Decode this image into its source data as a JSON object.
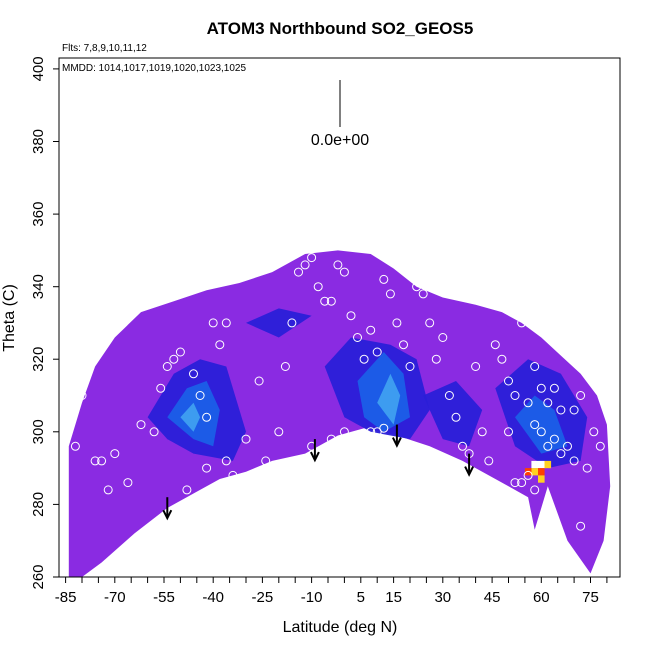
{
  "chart_data": {
    "type": "heatmap",
    "title": "ATOM3 Northbound SO2_GEOS5",
    "subtitle_flights": "Flts: 7,8,9,10,11,12",
    "subtitle_dates": "MMDD: 1014,1017,1019,1020,1023,1025",
    "xlabel": "Latitude (deg N)",
    "ylabel": "Theta (C)",
    "xlim": [
      -87,
      84
    ],
    "ylim": [
      260,
      403
    ],
    "x_ticks": [
      -85,
      -70,
      -55,
      -40,
      -25,
      -10,
      5,
      15,
      30,
      45,
      60,
      75
    ],
    "x_tick_labels": [
      "-85",
      "-70",
      "-55",
      "-40",
      "-25",
      "-10",
      "5",
      "15",
      "30",
      "45",
      "60",
      "75"
    ],
    "y_ticks": [
      260,
      280,
      300,
      320,
      340,
      360,
      380,
      400
    ],
    "y_tick_labels": [
      "260",
      "280",
      "300",
      "320",
      "340",
      "360",
      "380",
      "400"
    ],
    "scale_bar_label": "0.0e+00",
    "grid": false,
    "arrows_at": [
      [
        -54,
        282
      ],
      [
        -9,
        298
      ],
      [
        16,
        302
      ],
      [
        38,
        294
      ]
    ],
    "colors": {
      "background_field": "#8a2be2",
      "low_band": "#2a1fd8",
      "mid_band": "#1b5fe8",
      "high_band": "#3fa0f0",
      "peak_hot": "#ff4000",
      "peak_warm": "#ffd020",
      "peak_white": "#ffffff"
    },
    "envelope": [
      [
        -84,
        260
      ],
      [
        -84,
        296
      ],
      [
        -80,
        308
      ],
      [
        -76,
        318
      ],
      [
        -70,
        326
      ],
      [
        -62,
        333
      ],
      [
        -52,
        336
      ],
      [
        -42,
        339
      ],
      [
        -32,
        341
      ],
      [
        -22,
        344
      ],
      [
        -12,
        349
      ],
      [
        -2,
        350
      ],
      [
        8,
        349
      ],
      [
        15,
        345
      ],
      [
        22,
        340
      ],
      [
        30,
        337
      ],
      [
        40,
        335
      ],
      [
        48,
        333
      ],
      [
        54,
        330
      ],
      [
        60,
        326
      ],
      [
        66,
        321
      ],
      [
        72,
        316
      ],
      [
        77,
        310
      ],
      [
        80,
        302
      ],
      [
        81,
        285
      ],
      [
        79,
        270
      ],
      [
        75,
        261
      ],
      [
        68,
        270
      ],
      [
        62,
        285
      ],
      [
        58,
        273
      ],
      [
        56,
        282
      ],
      [
        50,
        285
      ],
      [
        44,
        288
      ],
      [
        36,
        292
      ],
      [
        26,
        296
      ],
      [
        16,
        299
      ],
      [
        6,
        301
      ],
      [
        -2,
        299
      ],
      [
        -12,
        294
      ],
      [
        -22,
        292
      ],
      [
        -30,
        289
      ],
      [
        -38,
        287
      ],
      [
        -46,
        283
      ],
      [
        -54,
        279
      ],
      [
        -64,
        272
      ],
      [
        -74,
        264
      ],
      [
        -80,
        260
      ]
    ],
    "enhanced_regions": [
      {
        "level": 1,
        "polygon": [
          [
            -60,
            304
          ],
          [
            -52,
            316
          ],
          [
            -44,
            320
          ],
          [
            -36,
            318
          ],
          [
            -30,
            300
          ],
          [
            -34,
            292
          ],
          [
            -46,
            294
          ],
          [
            -54,
            298
          ]
        ]
      },
      {
        "level": 2,
        "polygon": [
          [
            -54,
            304
          ],
          [
            -48,
            312
          ],
          [
            -42,
            314
          ],
          [
            -38,
            306
          ],
          [
            -40,
            296
          ],
          [
            -46,
            298
          ]
        ]
      },
      {
        "level": 3,
        "polygon": [
          [
            -50,
            304
          ],
          [
            -46,
            308
          ],
          [
            -44,
            304
          ],
          [
            -46,
            300
          ]
        ]
      },
      {
        "level": 1,
        "polygon": [
          [
            -6,
            318
          ],
          [
            2,
            326
          ],
          [
            14,
            324
          ],
          [
            22,
            320
          ],
          [
            26,
            306
          ],
          [
            20,
            298
          ],
          [
            8,
            300
          ],
          [
            0,
            304
          ]
        ]
      },
      {
        "level": 2,
        "polygon": [
          [
            4,
            314
          ],
          [
            12,
            322
          ],
          [
            18,
            316
          ],
          [
            20,
            304
          ],
          [
            12,
            300
          ],
          [
            6,
            304
          ]
        ]
      },
      {
        "level": 3,
        "polygon": [
          [
            10,
            308
          ],
          [
            14,
            316
          ],
          [
            17,
            310
          ],
          [
            15,
            302
          ]
        ]
      },
      {
        "level": 1,
        "polygon": [
          [
            -30,
            330
          ],
          [
            -20,
            334
          ],
          [
            -10,
            332
          ],
          [
            -20,
            326
          ]
        ]
      },
      {
        "level": 1,
        "polygon": [
          [
            24,
            310
          ],
          [
            34,
            314
          ],
          [
            42,
            306
          ],
          [
            38,
            296
          ],
          [
            30,
            298
          ]
        ]
      },
      {
        "level": 1,
        "polygon": [
          [
            46,
            312
          ],
          [
            56,
            320
          ],
          [
            66,
            316
          ],
          [
            74,
            304
          ],
          [
            72,
            292
          ],
          [
            62,
            290
          ],
          [
            52,
            296
          ]
        ]
      },
      {
        "level": 2,
        "polygon": [
          [
            52,
            304
          ],
          [
            58,
            310
          ],
          [
            64,
            306
          ],
          [
            68,
            296
          ],
          [
            60,
            294
          ]
        ]
      }
    ],
    "peak_cells": [
      {
        "x": 58,
        "y": 291,
        "level": "white"
      },
      {
        "x": 60,
        "y": 291,
        "level": "white"
      },
      {
        "x": 58,
        "y": 289,
        "level": "warm"
      },
      {
        "x": 60,
        "y": 289,
        "level": "hot"
      },
      {
        "x": 62,
        "y": 291,
        "level": "warm"
      },
      {
        "x": 60,
        "y": 287,
        "level": "warm"
      },
      {
        "x": 56,
        "y": 289,
        "level": "hot"
      }
    ],
    "sample_points": [
      [
        -82,
        296
      ],
      [
        -80,
        310
      ],
      [
        -76,
        292
      ],
      [
        -74,
        292
      ],
      [
        -70,
        294
      ],
      [
        -66,
        286
      ],
      [
        -72,
        284
      ],
      [
        -62,
        302
      ],
      [
        -58,
        300
      ],
      [
        -56,
        312
      ],
      [
        -54,
        318
      ],
      [
        -52,
        320
      ],
      [
        -50,
        322
      ],
      [
        -46,
        316
      ],
      [
        -44,
        310
      ],
      [
        -42,
        304
      ],
      [
        -40,
        330
      ],
      [
        -38,
        324
      ],
      [
        -36,
        330
      ],
      [
        -34,
        288
      ],
      [
        -30,
        298
      ],
      [
        -26,
        314
      ],
      [
        -24,
        292
      ],
      [
        -22,
        286
      ],
      [
        -20,
        300
      ],
      [
        -18,
        318
      ],
      [
        -16,
        330
      ],
      [
        -14,
        344
      ],
      [
        -12,
        346
      ],
      [
        -10,
        348
      ],
      [
        -8,
        340
      ],
      [
        -6,
        336
      ],
      [
        -4,
        336
      ],
      [
        -2,
        346
      ],
      [
        0,
        344
      ],
      [
        2,
        332
      ],
      [
        4,
        326
      ],
      [
        6,
        320
      ],
      [
        8,
        328
      ],
      [
        10,
        322
      ],
      [
        12,
        342
      ],
      [
        14,
        338
      ],
      [
        16,
        330
      ],
      [
        18,
        324
      ],
      [
        20,
        318
      ],
      [
        22,
        340
      ],
      [
        24,
        338
      ],
      [
        26,
        330
      ],
      [
        28,
        320
      ],
      [
        30,
        326
      ],
      [
        32,
        310
      ],
      [
        34,
        304
      ],
      [
        36,
        296
      ],
      [
        38,
        294
      ],
      [
        40,
        318
      ],
      [
        42,
        300
      ],
      [
        44,
        292
      ],
      [
        46,
        324
      ],
      [
        48,
        320
      ],
      [
        50,
        314
      ],
      [
        52,
        310
      ],
      [
        54,
        330
      ],
      [
        56,
        308
      ],
      [
        58,
        302
      ],
      [
        60,
        300
      ],
      [
        62,
        296
      ],
      [
        64,
        298
      ],
      [
        66,
        294
      ],
      [
        68,
        296
      ],
      [
        70,
        292
      ],
      [
        72,
        310
      ],
      [
        74,
        290
      ],
      [
        76,
        300
      ],
      [
        78,
        296
      ],
      [
        56,
        288
      ],
      [
        54,
        286
      ],
      [
        52,
        286
      ],
      [
        12,
        301
      ],
      [
        10,
        300
      ],
      [
        8,
        300
      ],
      [
        6,
        298
      ],
      [
        0,
        300
      ],
      [
        -4,
        298
      ],
      [
        -10,
        296
      ],
      [
        -36,
        292
      ],
      [
        -42,
        290
      ],
      [
        -48,
        284
      ],
      [
        -52,
        276
      ],
      [
        -56,
        272
      ],
      [
        -60,
        268
      ],
      [
        -66,
        266
      ],
      [
        -70,
        262
      ],
      [
        -74,
        262
      ],
      [
        60,
        312
      ],
      [
        62,
        308
      ],
      [
        66,
        306
      ],
      [
        58,
        318
      ],
      [
        64,
        312
      ],
      [
        70,
        306
      ],
      [
        50,
        300
      ],
      [
        58,
        284
      ],
      [
        72,
        274
      ]
    ]
  }
}
